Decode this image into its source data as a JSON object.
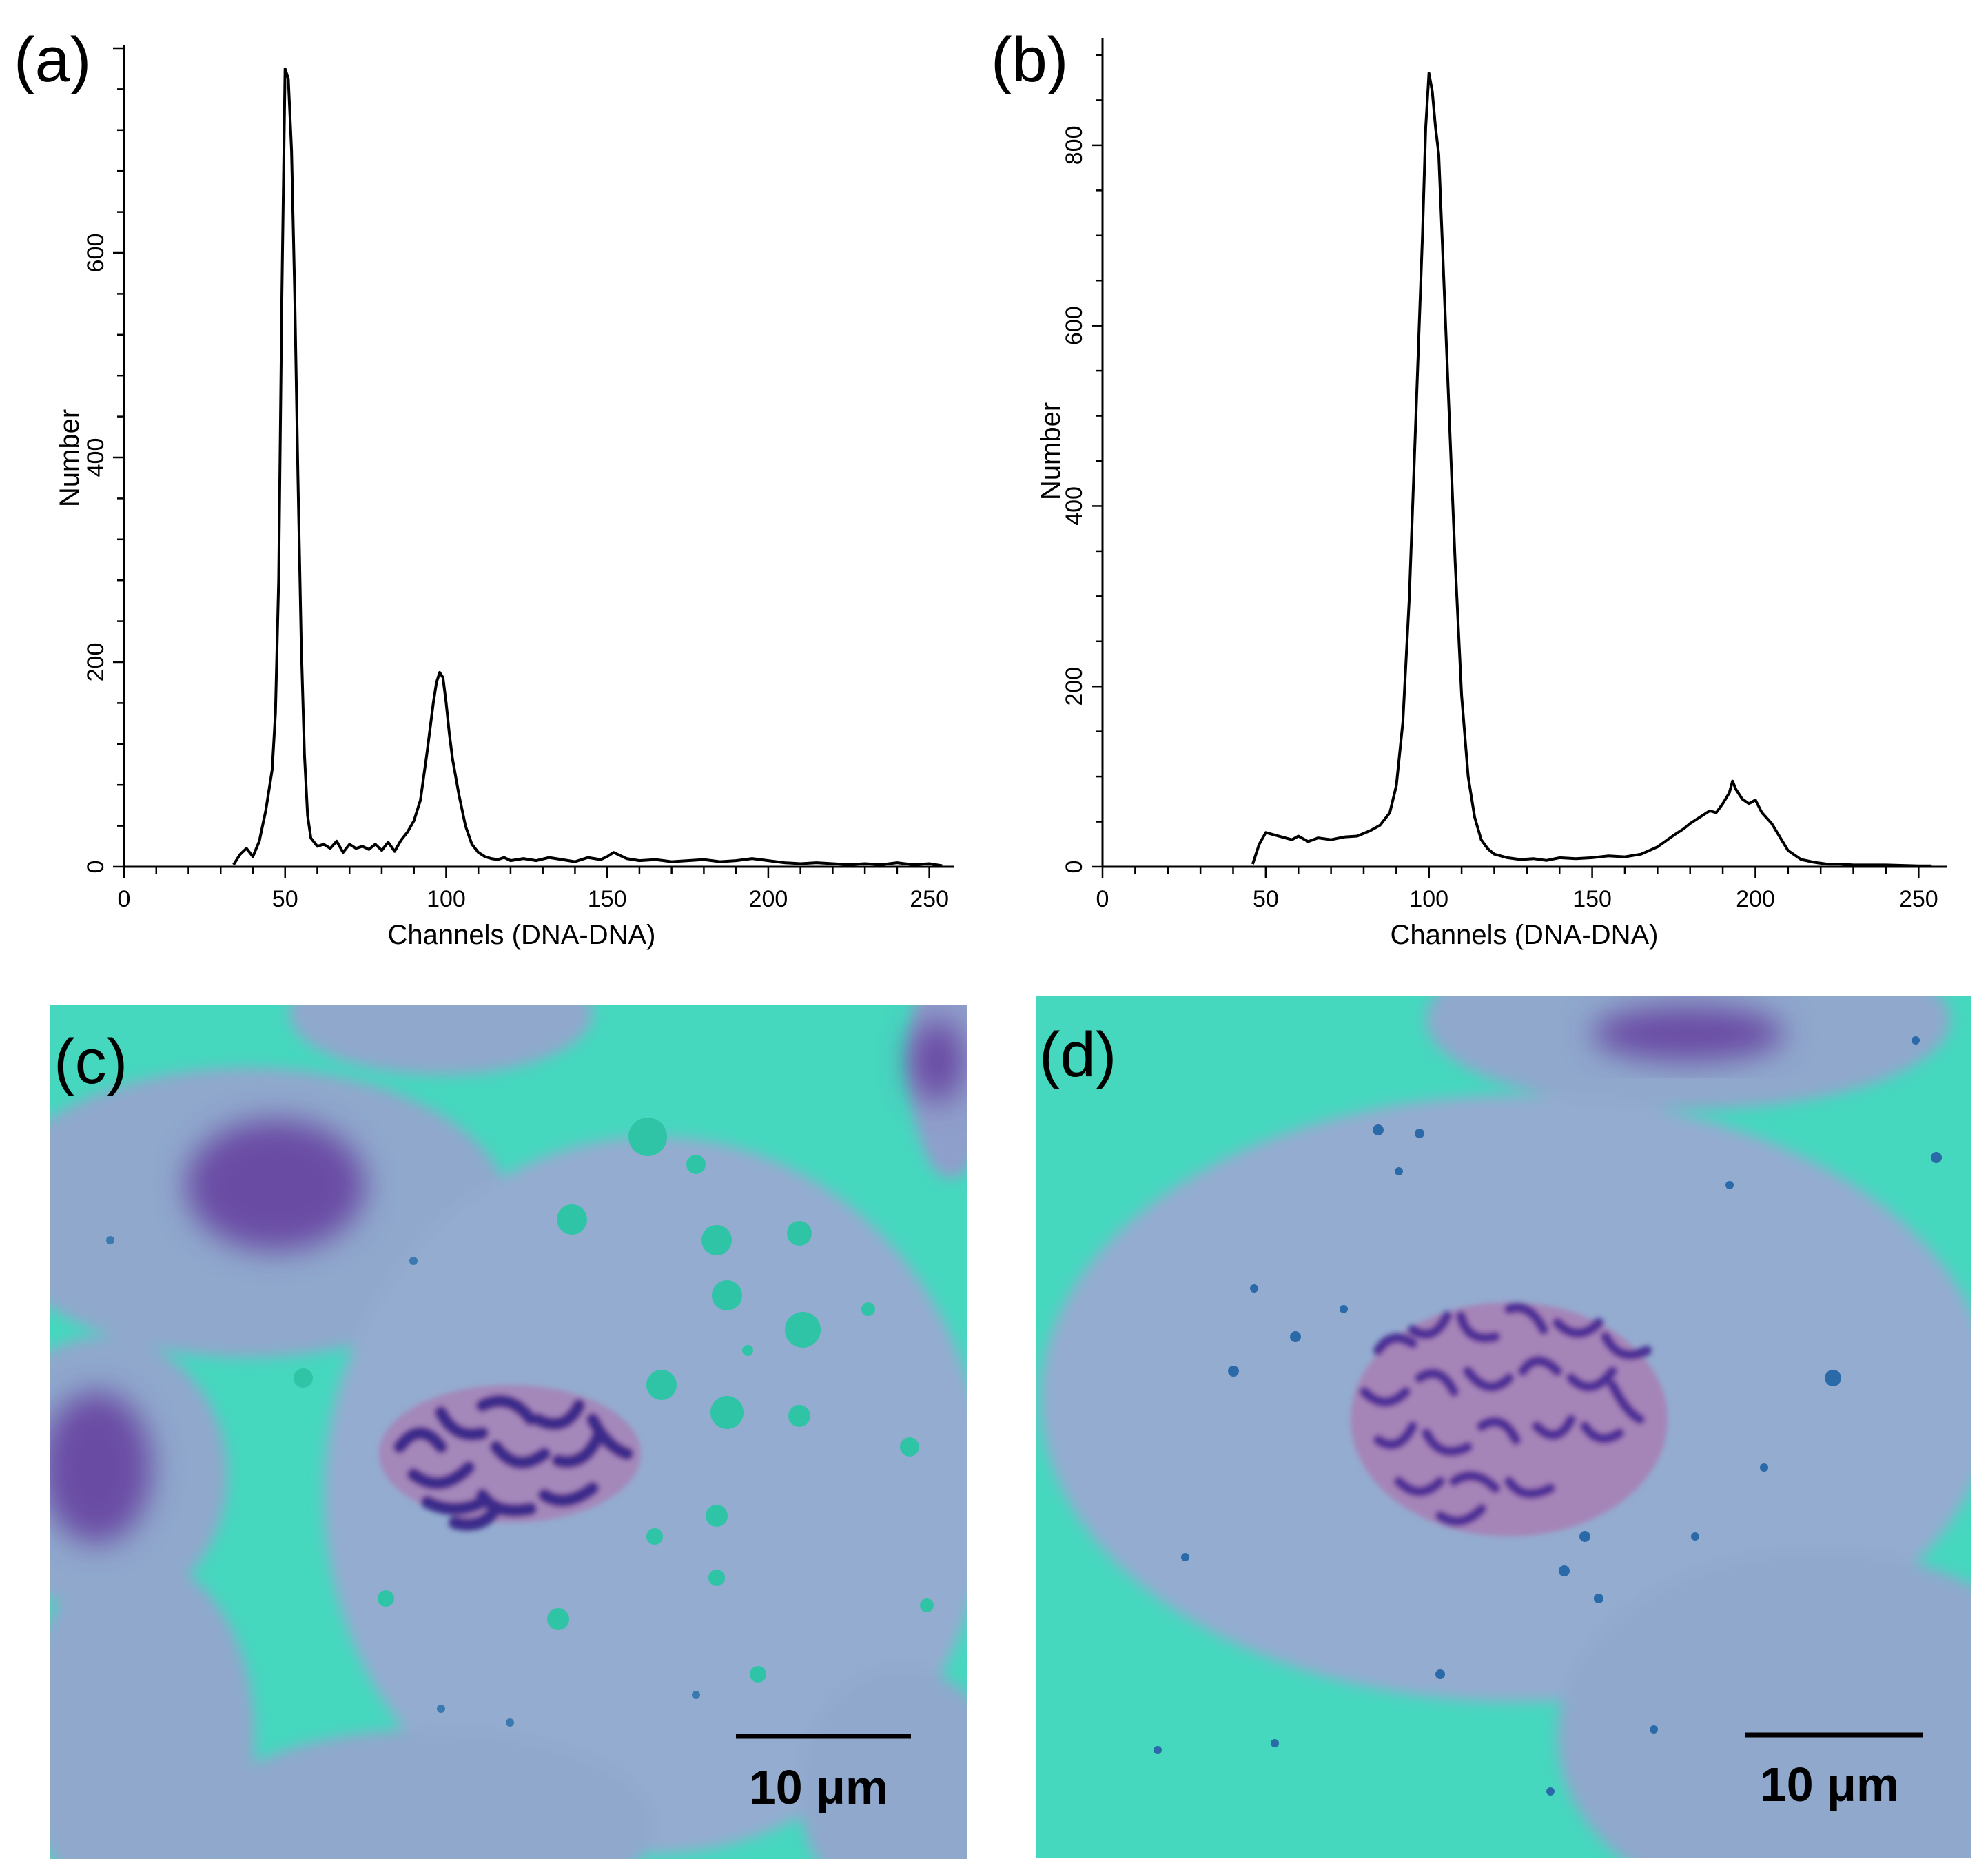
{
  "panels": {
    "a": "(a)",
    "b": "(b)",
    "c": "(c)",
    "d": "(d)"
  },
  "scale_bars": {
    "c": "10 μm",
    "d": "10 μm"
  },
  "colors": {
    "background_teal": "#46d7bf",
    "cytoplasm": "#8fa8cc",
    "chromosome": "#3a2a8a",
    "chromatin_pink": "#b06aa8",
    "droplet": "#2fc4a6"
  },
  "chart_data": [
    {
      "type": "line",
      "panel": "a",
      "xlabel": "Channels (DNA-DNA)",
      "ylabel": "Number",
      "xlim": [
        0,
        255
      ],
      "ylim": [
        0,
        800
      ],
      "xticks": [
        0,
        50,
        100,
        150,
        200,
        250
      ],
      "yticks": [
        0,
        200,
        400,
        600
      ],
      "series": [
        {
          "x": [
            34,
            36,
            38,
            40,
            42,
            44,
            46,
            47,
            48,
            49,
            50,
            51,
            52,
            53,
            54,
            55,
            56,
            57,
            58,
            60,
            62,
            64,
            66,
            68,
            70,
            72,
            74,
            76,
            78,
            80,
            82,
            84,
            86,
            88,
            90,
            92,
            94,
            96,
            97,
            98,
            99,
            100,
            101,
            102,
            104,
            106,
            108,
            110,
            112,
            114,
            116,
            118,
            120,
            124,
            128,
            132,
            136,
            140,
            144,
            148,
            150,
            152,
            156,
            160,
            165,
            170,
            175,
            180,
            185,
            190,
            195,
            200,
            205,
            210,
            215,
            220,
            225,
            230,
            235,
            240,
            245,
            250,
            254
          ],
          "y": [
            2,
            12,
            18,
            10,
            25,
            55,
            95,
            150,
            280,
            560,
            780,
            770,
            700,
            560,
            380,
            220,
            110,
            50,
            28,
            20,
            22,
            18,
            25,
            14,
            22,
            18,
            20,
            17,
            22,
            16,
            24,
            15,
            26,
            34,
            45,
            65,
            110,
            160,
            180,
            190,
            185,
            160,
            130,
            105,
            70,
            40,
            22,
            14,
            10,
            8,
            7,
            9,
            6,
            8,
            6,
            9,
            7,
            5,
            9,
            7,
            10,
            14,
            8,
            6,
            7,
            5,
            6,
            7,
            5,
            6,
            8,
            6,
            4,
            3,
            4,
            3,
            2,
            3,
            2,
            4,
            2,
            3,
            1
          ]
        }
      ]
    },
    {
      "type": "line",
      "panel": "b",
      "xlabel": "Channels (DNA-DNA)",
      "ylabel": "Number",
      "xlim": [
        0,
        255
      ],
      "ylim": [
        0,
        900
      ],
      "xticks": [
        0,
        50,
        100,
        150,
        200,
        250
      ],
      "yticks": [
        0,
        200,
        400,
        600,
        800
      ],
      "series": [
        {
          "x": [
            46,
            48,
            50,
            52,
            55,
            58,
            60,
            63,
            66,
            70,
            74,
            78,
            82,
            85,
            88,
            90,
            92,
            94,
            96,
            98,
            99,
            100,
            101,
            102,
            103,
            104,
            106,
            108,
            110,
            112,
            114,
            116,
            118,
            120,
            124,
            128,
            132,
            136,
            140,
            145,
            150,
            155,
            160,
            165,
            170,
            175,
            178,
            180,
            183,
            186,
            188,
            190,
            192,
            193,
            194,
            196,
            198,
            200,
            202,
            205,
            208,
            210,
            214,
            218,
            222,
            226,
            230,
            240,
            250,
            254
          ],
          "y": [
            3,
            25,
            38,
            36,
            33,
            30,
            34,
            28,
            32,
            30,
            33,
            34,
            40,
            46,
            60,
            90,
            160,
            300,
            500,
            700,
            820,
            880,
            860,
            820,
            790,
            700,
            520,
            340,
            190,
            100,
            55,
            30,
            20,
            14,
            10,
            8,
            9,
            7,
            10,
            9,
            10,
            12,
            11,
            14,
            22,
            35,
            42,
            48,
            55,
            62,
            60,
            70,
            82,
            95,
            86,
            75,
            70,
            74,
            60,
            48,
            30,
            18,
            8,
            5,
            3,
            3,
            2,
            2,
            1,
            1
          ]
        }
      ]
    }
  ]
}
